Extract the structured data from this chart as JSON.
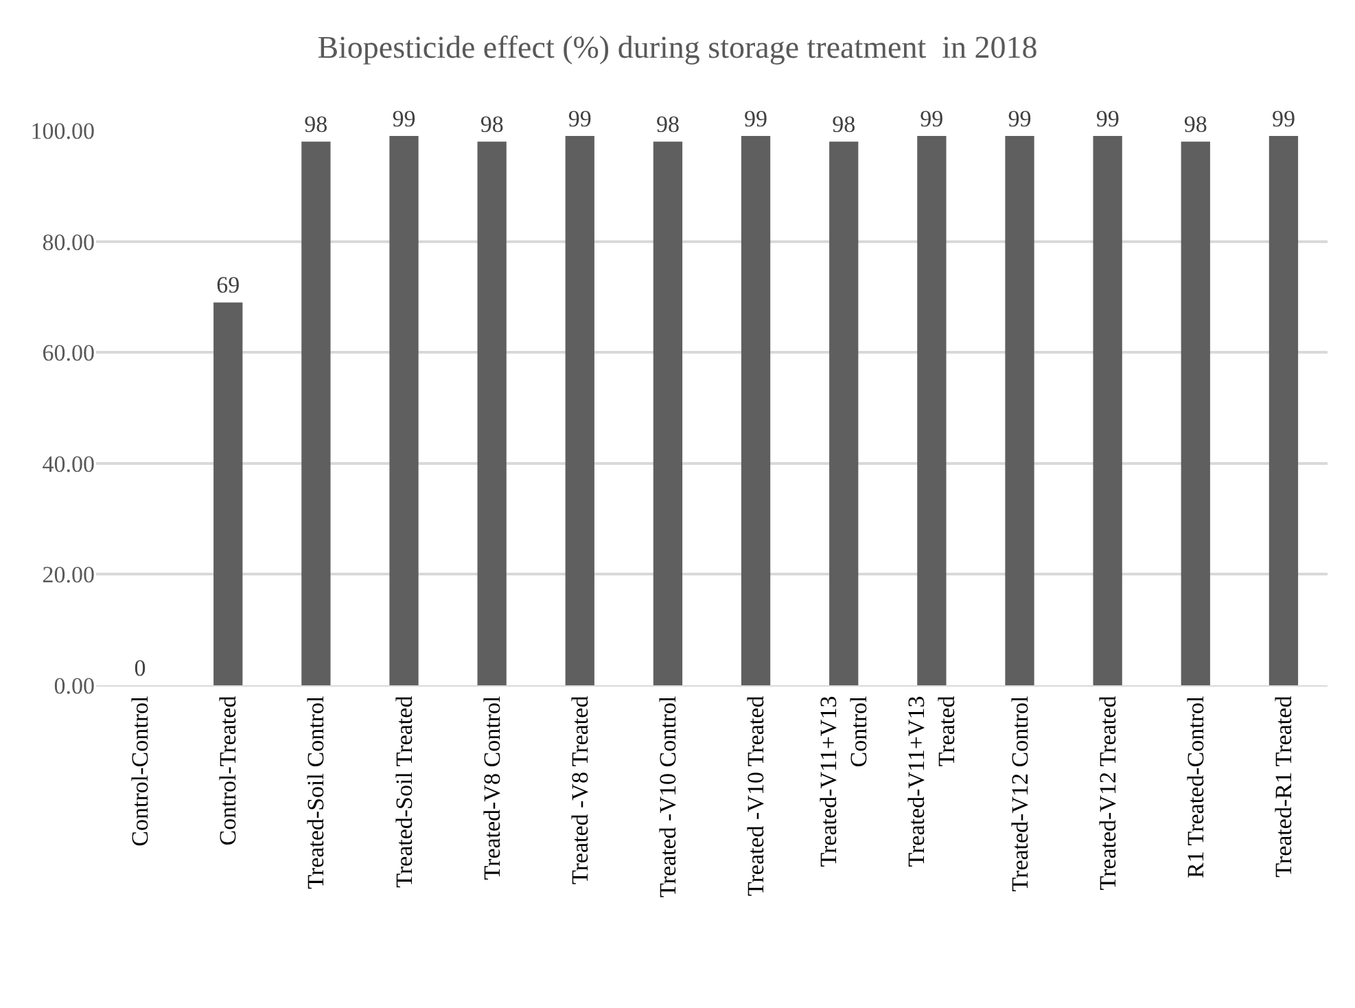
{
  "chart_data": {
    "type": "bar",
    "title": "Biopesticide effect (%) during storage treatment  in 2018",
    "categories": [
      "Control-Control",
      "Control-Treated",
      "Treated-Soil Control",
      "Treated-Soil Treated",
      "Treated-V8 Control",
      "Treated -V8 Treated",
      "Treated -V10 Control",
      "Treated -V10 Treated",
      "Treated-V11+V13 Control",
      "Treated-V11+V13 Treated",
      "Treated-V12 Control",
      "Treated-V12 Treated",
      "R1 Treated-Control",
      "Treated-R1 Treated"
    ],
    "values": [
      0,
      69,
      98,
      99,
      98,
      99,
      98,
      99,
      98,
      99,
      99,
      99,
      98,
      99
    ],
    "data_labels": true,
    "color": "#5f5f5f",
    "ylim": [
      0,
      100
    ],
    "yticks": [
      {
        "value": 0,
        "label": "0.00"
      },
      {
        "value": 20,
        "label": "20.00"
      },
      {
        "value": 40,
        "label": "40.00"
      },
      {
        "value": 60,
        "label": "60.00"
      },
      {
        "value": 80,
        "label": "80.00"
      },
      {
        "value": 100,
        "label": "100.00"
      }
    ],
    "grid": "y"
  }
}
